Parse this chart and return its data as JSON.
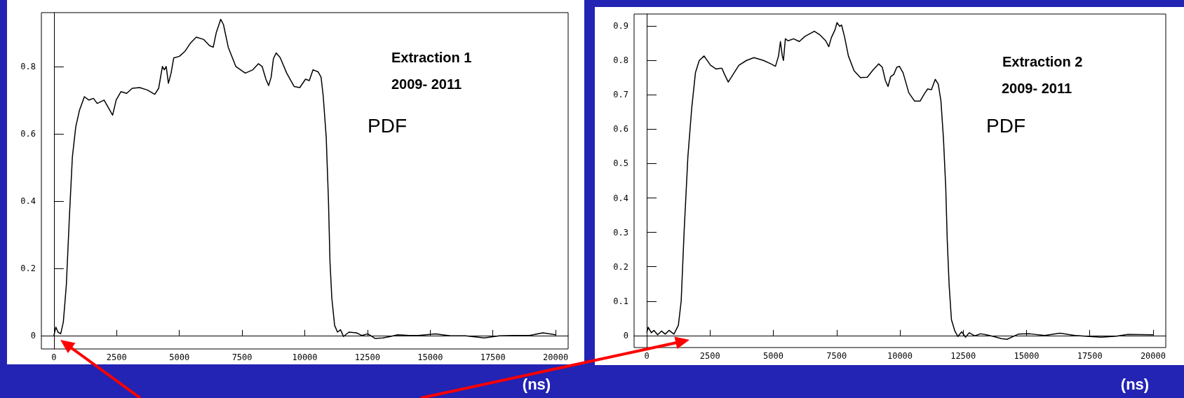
{
  "chart_data": [
    {
      "type": "line",
      "xlabel": "(ns)",
      "annotations": [
        "Extraction 1",
        "2009- 2011",
        "PDF"
      ],
      "xlim": [
        -500,
        20500
      ],
      "xticks": [
        0,
        2500,
        5000,
        7500,
        10000,
        12500,
        15000,
        17500,
        20000
      ],
      "ylim": [
        -0.04,
        0.96
      ],
      "yticks": [
        0,
        0.2,
        0.4,
        0.6,
        0.8
      ],
      "series": [
        {
          "color": "#000000",
          "x": [
            0,
            75,
            165,
            270,
            375,
            495,
            615,
            735,
            870,
            1020,
            1215,
            1395,
            1575,
            1725,
            2000,
            2150,
            2340,
            2480,
            2670,
            2900,
            3120,
            3420,
            3720,
            4020,
            4175,
            4325,
            4400,
            4475,
            4565,
            4670,
            4775,
            5000,
            5225,
            5450,
            5675,
            5975,
            6200,
            6350,
            6470,
            6650,
            6760,
            6950,
            7250,
            7630,
            7930,
            8150,
            8300,
            8450,
            8560,
            8660,
            8750,
            8860,
            9020,
            9280,
            9580,
            9800,
            10030,
            10180,
            10330,
            10530,
            10650,
            10735,
            10855,
            10945,
            11005,
            11080,
            11190,
            11305,
            11425,
            11545,
            11760,
            12060,
            12280,
            12510,
            12810,
            13110,
            13410,
            13710,
            14160,
            14530,
            15210,
            15810,
            16410,
            17160,
            17760,
            18360,
            18960,
            19490,
            20000
          ],
          "values": [
            0,
            0.025,
            0.01,
            0.005,
            0.04,
            0.15,
            0.35,
            0.53,
            0.62,
            0.67,
            0.71,
            0.7,
            0.705,
            0.69,
            0.7,
            0.68,
            0.655,
            0.7,
            0.725,
            0.72,
            0.735,
            0.737,
            0.73,
            0.717,
            0.735,
            0.8,
            0.79,
            0.8,
            0.75,
            0.78,
            0.825,
            0.83,
            0.845,
            0.87,
            0.887,
            0.88,
            0.862,
            0.857,
            0.9,
            0.94,
            0.924,
            0.857,
            0.8,
            0.78,
            0.79,
            0.808,
            0.8,
            0.762,
            0.743,
            0.768,
            0.823,
            0.84,
            0.826,
            0.78,
            0.74,
            0.737,
            0.762,
            0.758,
            0.79,
            0.784,
            0.768,
            0.712,
            0.59,
            0.4,
            0.22,
            0.11,
            0.03,
            0.01,
            0.017,
            -0.003,
            0.01,
            0.008,
            0,
            0.005,
            -0.009,
            -0.007,
            -0.003,
            0.002,
            0,
            0,
            0.005,
            -0.001,
            -0.001,
            -0.007,
            -0.001,
            0,
            0,
            0.008,
            0.002
          ]
        }
      ]
    },
    {
      "type": "line",
      "xlabel": "(ns)",
      "annotations": [
        "Extraction 2",
        "2009- 2011",
        "PDF"
      ],
      "xlim": [
        -500,
        20500
      ],
      "xticks": [
        0,
        2500,
        5000,
        7500,
        10000,
        12500,
        15000,
        17500,
        20000
      ],
      "ylim": [
        -0.035,
        0.935
      ],
      "yticks": [
        0,
        0.1,
        0.2,
        0.3,
        0.4,
        0.5,
        0.6,
        0.7,
        0.8,
        0.9
      ],
      "series": [
        {
          "color": "#000000",
          "x": [
            0,
            60,
            180,
            285,
            430,
            580,
            730,
            880,
            1075,
            1250,
            1360,
            1475,
            1625,
            1775,
            1925,
            2075,
            2265,
            2520,
            2745,
            2895,
            2970,
            3070,
            3220,
            3415,
            3640,
            3940,
            4235,
            4610,
            4905,
            5085,
            5205,
            5280,
            5355,
            5400,
            5475,
            5580,
            5800,
            6025,
            6250,
            6620,
            6845,
            7070,
            7190,
            7290,
            7440,
            7515,
            7620,
            7695,
            7815,
            7965,
            8190,
            8440,
            8710,
            8935,
            9160,
            9305,
            9425,
            9530,
            9635,
            9755,
            9875,
            9980,
            10125,
            10350,
            10575,
            10800,
            10975,
            11095,
            11245,
            11395,
            11515,
            11620,
            11720,
            11810,
            11870,
            11945,
            12035,
            12170,
            12290,
            12440,
            12590,
            12735,
            12960,
            13185,
            13410,
            13705,
            14005,
            14230,
            14675,
            15125,
            15720,
            16315,
            16915,
            17510,
            17955,
            18555,
            19000,
            20000
          ],
          "values": [
            0.008,
            0.024,
            0.008,
            0.015,
            0.002,
            0.013,
            0.004,
            0.015,
            0.004,
            0.03,
            0.1,
            0.3,
            0.52,
            0.66,
            0.765,
            0.8,
            0.813,
            0.786,
            0.775,
            0.777,
            0.777,
            0.76,
            0.737,
            0.76,
            0.786,
            0.8,
            0.808,
            0.8,
            0.79,
            0.783,
            0.813,
            0.855,
            0.813,
            0.8,
            0.863,
            0.857,
            0.863,
            0.855,
            0.87,
            0.885,
            0.874,
            0.857,
            0.84,
            0.866,
            0.89,
            0.91,
            0.899,
            0.903,
            0.868,
            0.813,
            0.77,
            0.75,
            0.751,
            0.772,
            0.79,
            0.78,
            0.742,
            0.724,
            0.753,
            0.759,
            0.78,
            0.783,
            0.764,
            0.706,
            0.682,
            0.682,
            0.704,
            0.717,
            0.715,
            0.745,
            0.731,
            0.682,
            0.572,
            0.43,
            0.276,
            0.145,
            0.046,
            0.013,
            -0.003,
            0.011,
            -0.005,
            0.008,
            -0.001,
            0.005,
            0.002,
            -0.003,
            -0.009,
            -0.011,
            0.004,
            0.005,
            0,
            0.007,
            0,
            -0.003,
            -0.005,
            -0.002,
            0.003,
            0.002
          ]
        }
      ]
    }
  ]
}
